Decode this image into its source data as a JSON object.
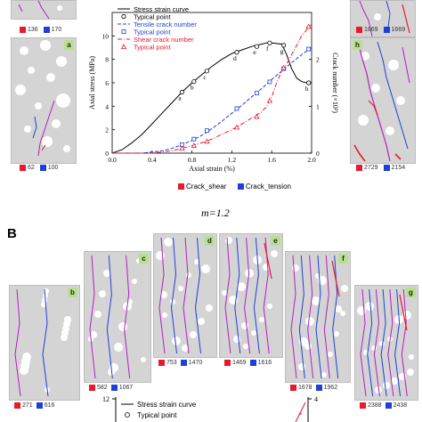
{
  "section_b_letter": "B",
  "m_label": "m=1.2",
  "top_panels": {
    "top_left": {
      "shear": "136",
      "tension": "170"
    },
    "a": {
      "tag": "a",
      "shear": "62",
      "tension": "100"
    },
    "top_right": {
      "shear": "1869",
      "tension": "1669"
    },
    "h": {
      "tag": "h",
      "shear": "2729",
      "tension": "2154"
    }
  },
  "crack_legend": {
    "shear": "Crack_shear",
    "tension": "Crack_tension",
    "shear_color": "#e8192c",
    "tension_color": "#1f3fd8"
  },
  "bottom_panels": [
    {
      "tag": "b",
      "shear": "271",
      "tension": "616"
    },
    {
      "tag": "c",
      "shear": "582",
      "tension": "1067"
    },
    {
      "tag": "d",
      "shear": "753",
      "tension": "1470"
    },
    {
      "tag": "e",
      "shear": "1469",
      "tension": "1616"
    },
    {
      "tag": "f",
      "shear": "1678",
      "tension": "1962"
    },
    {
      "tag": "g",
      "shear": "2388",
      "tension": "2438"
    }
  ],
  "bottom_chart_fragment": {
    "y_tick": "12",
    "right_tick": "4",
    "legend": [
      "Stress strain curve",
      "Typical point"
    ]
  },
  "chart_data": {
    "type": "line",
    "xlabel": "Axial strain (%)",
    "ylabel": "Axial stress (MPa)",
    "y2label": "Crack number (×10³)",
    "xlim": [
      0,
      2.0
    ],
    "ylim": [
      0,
      12
    ],
    "y2lim": [
      0,
      3
    ],
    "xticks": [
      "0.0",
      "0.4",
      "0.8",
      "1.2",
      "1.6",
      "2.0"
    ],
    "yticks": [
      "0",
      "2",
      "4",
      "6",
      "8",
      "10"
    ],
    "y2ticks": [
      "0",
      "1",
      "2"
    ],
    "legend": [
      {
        "label": "Stress strain curve",
        "color": "#000000"
      },
      {
        "label": "Typical point",
        "color": "#000000"
      },
      {
        "label": "Tensile crack number",
        "color": "#1f3fd8"
      },
      {
        "label": "Typical point",
        "color": "#1f3fd8"
      },
      {
        "label": "Shear crack number",
        "color": "#e8192c"
      },
      {
        "label": "Typical point",
        "color": "#e8192c"
      }
    ],
    "series": [
      {
        "name": "Stress strain curve",
        "axis": "left",
        "color": "#000000",
        "x": [
          0,
          0.1,
          0.2,
          0.3,
          0.4,
          0.5,
          0.6,
          0.7,
          0.8,
          0.9,
          1.0,
          1.1,
          1.2,
          1.3,
          1.4,
          1.5,
          1.55,
          1.6,
          1.7,
          1.75,
          1.8,
          1.85,
          1.9,
          1.95,
          2.0
        ],
        "y": [
          0,
          0.3,
          0.9,
          1.6,
          2.5,
          3.4,
          4.3,
          5.2,
          6.0,
          6.7,
          7.4,
          8.0,
          8.5,
          8.8,
          9.1,
          9.3,
          9.4,
          9.4,
          9.3,
          8.4,
          7.2,
          6.4,
          6.1,
          6.0,
          6.0
        ]
      },
      {
        "name": "Tensile crack number",
        "axis": "right",
        "color": "#1f3fd8",
        "x": [
          0,
          0.3,
          0.5,
          0.6,
          0.7,
          0.8,
          0.9,
          1.0,
          1.1,
          1.2,
          1.3,
          1.4,
          1.5,
          1.6,
          1.7,
          1.8,
          1.9,
          2.0
        ],
        "y": [
          0,
          0,
          0.05,
          0.1,
          0.18,
          0.27,
          0.38,
          0.52,
          0.68,
          0.85,
          1.02,
          1.2,
          1.38,
          1.57,
          1.75,
          1.93,
          2.1,
          2.25
        ]
      },
      {
        "name": "Shear crack number",
        "axis": "right",
        "color": "#e8192c",
        "x": [
          0,
          0.4,
          0.6,
          0.7,
          0.8,
          0.9,
          1.0,
          1.1,
          1.2,
          1.3,
          1.4,
          1.5,
          1.55,
          1.6,
          1.65,
          1.7,
          1.75,
          1.8,
          1.9,
          2.0
        ],
        "y": [
          0,
          0,
          0.05,
          0.1,
          0.16,
          0.22,
          0.3,
          0.4,
          0.5,
          0.62,
          0.75,
          0.88,
          1.0,
          1.2,
          1.5,
          1.75,
          1.9,
          2.1,
          2.5,
          2.75
        ]
      }
    ],
    "typical_points": {
      "labels": [
        "a",
        "b",
        "c",
        "d",
        "e",
        "f",
        "g",
        "h"
      ],
      "x": [
        0.7,
        0.82,
        0.95,
        1.25,
        1.45,
        1.58,
        1.72,
        1.97
      ],
      "stress": [
        5.2,
        6.1,
        7.0,
        8.6,
        9.1,
        9.4,
        9.2,
        6.0
      ],
      "tension": [
        0.18,
        0.3,
        0.48,
        0.95,
        1.28,
        1.52,
        1.8,
        2.22
      ],
      "shear": [
        0.1,
        0.16,
        0.25,
        0.55,
        0.78,
        1.12,
        1.82,
        2.7
      ]
    },
    "grid": false
  }
}
